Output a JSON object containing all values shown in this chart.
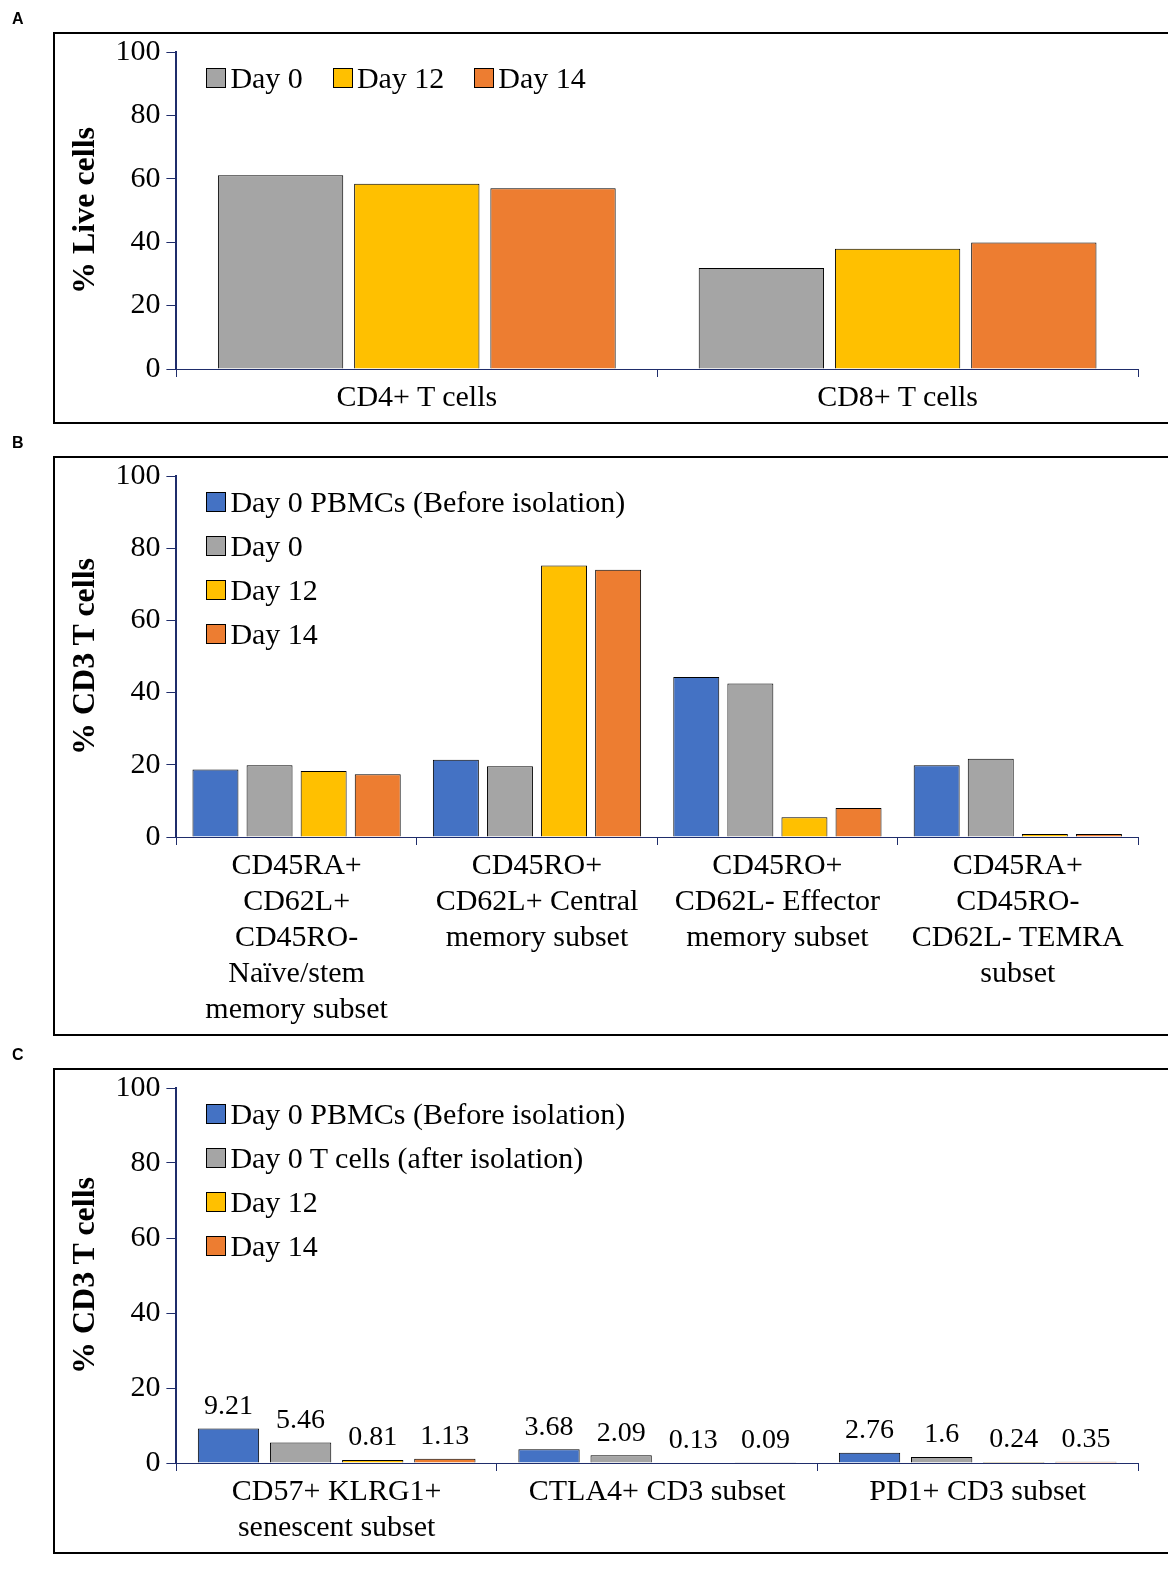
{
  "chart_data": [
    {
      "type": "bar",
      "title": "A",
      "ylabel": "% Live cells",
      "categories": [
        "CD4+ T cells",
        "CD8+ T cells"
      ],
      "series": [
        {
          "name": "Day 0",
          "color": "#a5a5a5",
          "values": [
            61.1,
            31.9
          ]
        },
        {
          "name": "Day 12",
          "color": "#ffc000",
          "values": [
            58.4,
            37.9
          ]
        },
        {
          "name": "Day 14",
          "color": "#ed7d31",
          "values": [
            57.0,
            39.9
          ]
        }
      ],
      "ylim": [
        0,
        100
      ],
      "yticks": [
        0,
        20,
        40,
        60,
        80,
        100
      ],
      "grid": false,
      "legend": "top left"
    },
    {
      "type": "bar",
      "title": "B",
      "ylabel": "% CD3 T cells",
      "categories": [
        "CD45RA+ CD62L+ CD45RO- Naïve/stem memory subset",
        "CD45RO+ CD62L+ Central memory subset",
        "CD45RO+ CD62L- Effector memory subset",
        "CD45RA+ CD45RO- CD62L- TEMRA subset"
      ],
      "series": [
        {
          "name": "Day 0 PBMCs (Before isolation)",
          "color": "#4472c4",
          "values": [
            18.7,
            21.4,
            44.3,
            19.9
          ]
        },
        {
          "name": "Day 0",
          "color": "#a5a5a5",
          "values": [
            19.9,
            19.6,
            42.5,
            21.7
          ]
        },
        {
          "name": "Day 12",
          "color": "#ffc000",
          "values": [
            18.3,
            75.2,
            5.5,
            0.8
          ]
        },
        {
          "name": "Day 14",
          "color": "#ed7d31",
          "values": [
            17.4,
            74.0,
            8.0,
            0.8
          ]
        }
      ],
      "ylim": [
        0,
        100
      ],
      "yticks": [
        0,
        20,
        40,
        60,
        80,
        100
      ],
      "grid": false,
      "legend": "top left"
    },
    {
      "type": "bar",
      "title": "C",
      "ylabel": "% CD3 T cells",
      "categories": [
        "CD57+ KLRG1+ senescent subset",
        "CTLA4+ CD3 subset",
        "PD1+ CD3 subset"
      ],
      "series": [
        {
          "name": "Day 0 PBMCs (Before isolation)",
          "color": "#4472c4",
          "values": [
            9.21,
            3.68,
            2.76
          ]
        },
        {
          "name": "Day 0 T cells (after isolation)",
          "color": "#a5a5a5",
          "values": [
            5.46,
            2.09,
            1.6
          ]
        },
        {
          "name": "Day 12",
          "color": "#ffc000",
          "values": [
            0.81,
            0.13,
            0.24
          ]
        },
        {
          "name": "Day 14",
          "color": "#ed7d31",
          "values": [
            1.13,
            0.09,
            0.35
          ]
        }
      ],
      "ylim": [
        0,
        100
      ],
      "yticks": [
        0,
        20,
        40,
        60,
        80,
        100
      ],
      "grid": false,
      "legend": "top left",
      "data_labels": true
    }
  ]
}
